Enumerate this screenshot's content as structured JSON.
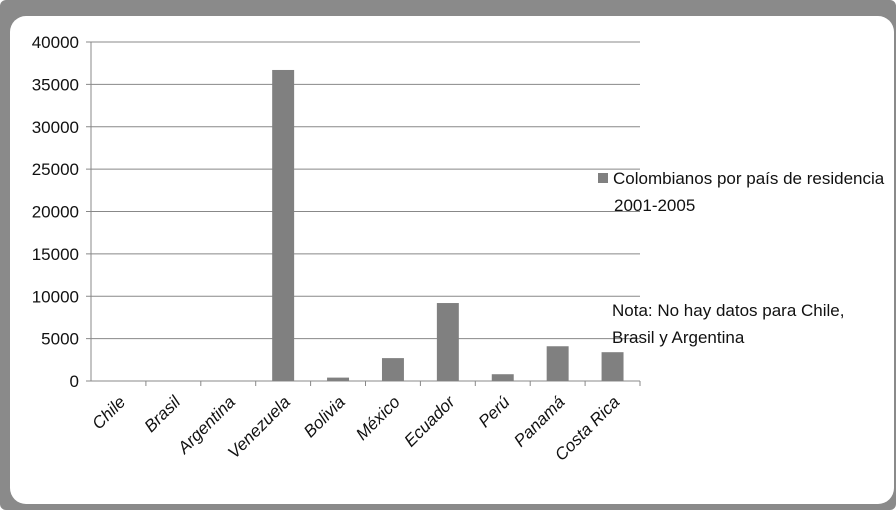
{
  "chart_data": {
    "type": "bar",
    "categories": [
      "Chile",
      "Brasil",
      "Argentina",
      "Venezuela",
      "Bolivia",
      "México",
      "Ecuador",
      "Perú",
      "Panamá",
      "Costa Rica"
    ],
    "series": [
      {
        "name": "Colombianos por país de residencia 2001-2005",
        "values": [
          0,
          0,
          0,
          36700,
          400,
          2700,
          9200,
          800,
          4100,
          3400
        ]
      }
    ],
    "ylim": [
      0,
      40000
    ],
    "yticks": [
      0,
      5000,
      10000,
      15000,
      20000,
      25000,
      30000,
      35000,
      40000
    ],
    "grid": "horizontal",
    "legend_position": "right",
    "bar_color": "#808080",
    "legend": {
      "label_line1": "Colombianos por país de residencia",
      "label_line2": "2001-2005"
    },
    "note": {
      "line1": "Nota: No hay datos para Chile,",
      "line2": "Brasil y Argentina"
    }
  },
  "colors": {
    "frame": "#8a8a8a",
    "bar": "#808080",
    "grid": "#888888"
  }
}
